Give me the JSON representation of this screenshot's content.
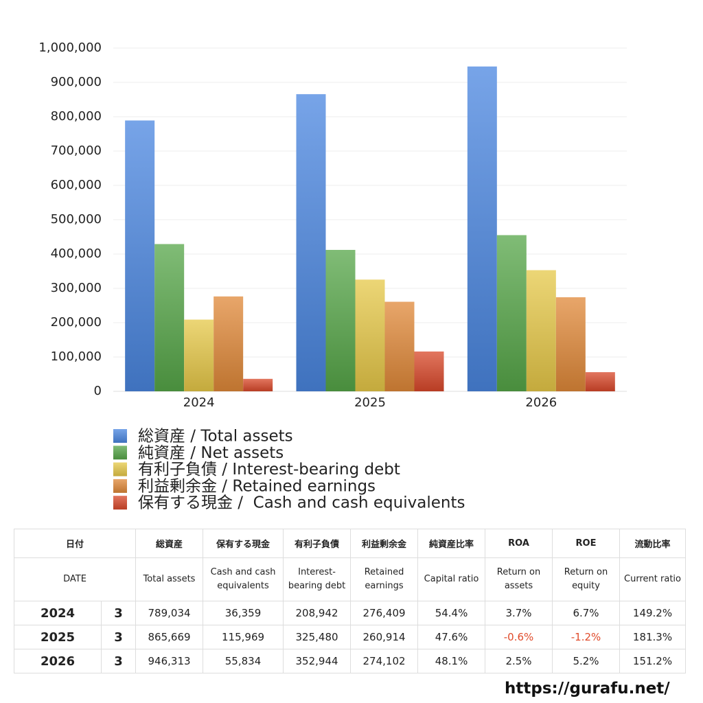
{
  "chart_data": {
    "type": "bar",
    "categories": [
      "2024",
      "2025",
      "2026"
    ],
    "series": [
      {
        "name": "総資産 / Total assets",
        "color": "#4a86e0",
        "values": [
          789034,
          865669,
          946313
        ]
      },
      {
        "name": "純資産 / Net assets",
        "color": "#56a648",
        "values": [
          429000,
          412000,
          455000
        ]
      },
      {
        "name": "有利子負債 / Interest-bearing debt",
        "color": "#e6c848",
        "values": [
          208942,
          325480,
          352944
        ]
      },
      {
        "name": "利益剰余金 / Retained earnings",
        "color": "#e08838",
        "values": [
          276409,
          260914,
          274102
        ]
      },
      {
        "name": "保有する現金 /  Cash and cash equivalents",
        "color": "#d8482a",
        "values": [
          36359,
          115969,
          55834
        ]
      }
    ],
    "ylim": [
      0,
      1000000
    ],
    "yticks": [
      0,
      {
        "value": 100000,
        "label": "100,000"
      },
      {
        "value": 200000,
        "label": "200,000"
      },
      {
        "value": 300000,
        "label": "300,000"
      },
      {
        "value": 400000,
        "label": "400,000"
      },
      {
        "value": 500000,
        "label": "500,000"
      },
      {
        "value": 600000,
        "label": "600,000"
      },
      {
        "value": 700000,
        "label": "700,000"
      },
      {
        "value": 800000,
        "label": "800,000"
      },
      {
        "value": 900000,
        "label": "900,000"
      },
      {
        "value": 1000000,
        "label": "1,000,000"
      }
    ],
    "grid": true
  },
  "table": {
    "header_ja": [
      "日付",
      "総資産",
      "保有する現金",
      "有利子負債",
      "利益剰余金",
      "純資産比率",
      "ROA",
      "ROE",
      "流動比率"
    ],
    "header_en": [
      "DATE",
      "Total assets",
      "Cash and cash equivalents",
      "Interest-bearing debt",
      "Retained earnings",
      "Capital ratio",
      "Return on assets",
      "Return on equity",
      "Current ratio"
    ],
    "rows": [
      [
        "2024",
        "3",
        "789,034",
        "36,359",
        "208,942",
        "276,409",
        "54.4%",
        "3.7%",
        "6.7%",
        "149.2%"
      ],
      [
        "2025",
        "3",
        "865,669",
        "115,969",
        "325,480",
        "260,914",
        "47.6%",
        "-0.6%",
        "-1.2%",
        "181.3%"
      ],
      [
        "2026",
        "3",
        "946,313",
        "55,834",
        "352,944",
        "274,102",
        "48.1%",
        "2.5%",
        "5.2%",
        "151.2%"
      ]
    ]
  },
  "footer": "https://gurafu.net/"
}
